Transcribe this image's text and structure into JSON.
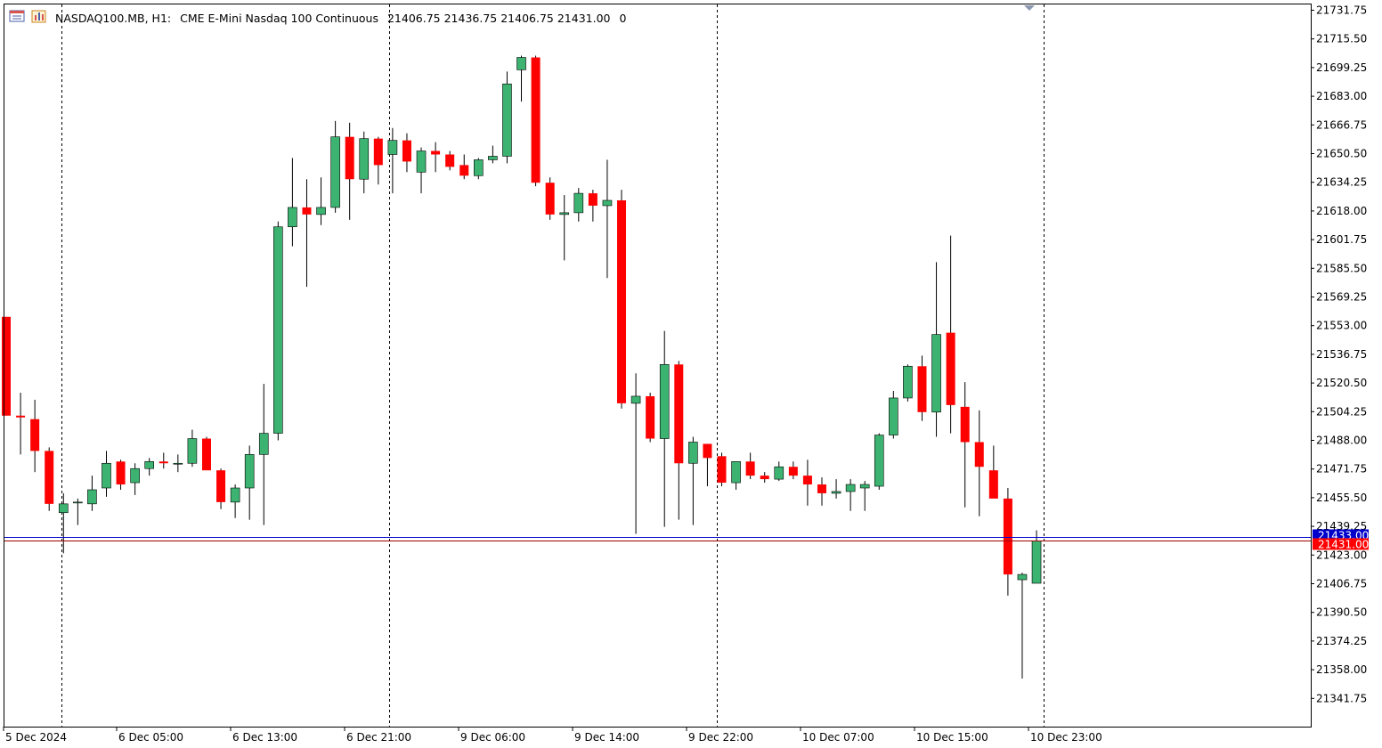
{
  "header": {
    "symbol": "NASDAQ100.MB, H1:",
    "description": "CME E-Mini Nasdaq 100 Continuous",
    "ohlc": "21406.75 21436.75 21406.75 21431.00",
    "volume": "0"
  },
  "colors": {
    "background": "#ffffff",
    "bull": "#3cb371",
    "bear": "#ff0000",
    "wick": "#000000",
    "bid_line": "#0000cc",
    "ask_line": "#a00000",
    "axis": "#000000",
    "separator": "#000000"
  },
  "chart_data": {
    "type": "candlestick",
    "symbol": "NASDAQ100.MB",
    "timeframe": "H1",
    "ylim": [
      21333.5,
      21736
    ],
    "y_ticks": [
      "21731.75",
      "21715.50",
      "21699.25",
      "21683.00",
      "21666.75",
      "21650.50",
      "21634.25",
      "21618.00",
      "21601.75",
      "21585.50",
      "21569.25",
      "21553.00",
      "21536.75",
      "21520.50",
      "21504.25",
      "21488.00",
      "21471.75",
      "21455.50",
      "21439.25",
      "21423.00",
      "21406.75",
      "21390.50",
      "21374.25",
      "21358.00",
      "21341.75"
    ],
    "x_labels": [
      "5 Dec 2024",
      "6 Dec 05:00",
      "6 Dec 13:00",
      "6 Dec 21:00",
      "9 Dec 06:00",
      "9 Dec 14:00",
      "9 Dec 22:00",
      "10 Dec 07:00",
      "10 Dec 15:00",
      "10 Dec 23:00"
    ],
    "day_separators": [
      "6 Dec 00:00",
      "7 Dec 00:00",
      "10 Dec 00:00",
      "11 Dec 00:00"
    ],
    "price_labels": {
      "bid": "21433.00",
      "ask": "21431.00"
    },
    "bid": 21433.0,
    "ask": 21431.0,
    "candles": [
      {
        "o": 21558,
        "h": 21558,
        "l": 21502,
        "c": 21502
      },
      {
        "o": 21502,
        "h": 21515,
        "l": 21480,
        "c": 21501
      },
      {
        "o": 21500,
        "h": 21511,
        "l": 21470,
        "c": 21482
      },
      {
        "o": 21482,
        "h": 21484,
        "l": 21448,
        "c": 21452
      },
      {
        "o": 21447,
        "h": 21458,
        "l": 21424,
        "c": 21452
      },
      {
        "o": 21453,
        "h": 21455,
        "l": 21440,
        "c": 21453
      },
      {
        "o": 21452,
        "h": 21468,
        "l": 21448,
        "c": 21460
      },
      {
        "o": 21461,
        "h": 21482,
        "l": 21456,
        "c": 21475
      },
      {
        "o": 21476,
        "h": 21477,
        "l": 21460,
        "c": 21463
      },
      {
        "o": 21464,
        "h": 21475,
        "l": 21457,
        "c": 21472
      },
      {
        "o": 21472,
        "h": 21478,
        "l": 21468,
        "c": 21476
      },
      {
        "o": 21476,
        "h": 21481,
        "l": 21472,
        "c": 21475
      },
      {
        "o": 21475,
        "h": 21480,
        "l": 21470,
        "c": 21475
      },
      {
        "o": 21475,
        "h": 21494,
        "l": 21473,
        "c": 21489
      },
      {
        "o": 21489,
        "h": 21490,
        "l": 21472,
        "c": 21471
      },
      {
        "o": 21471,
        "h": 21472,
        "l": 21449,
        "c": 21453
      },
      {
        "o": 21453,
        "h": 21463,
        "l": 21444,
        "c": 21461
      },
      {
        "o": 21461,
        "h": 21485,
        "l": 21443,
        "c": 21480
      },
      {
        "o": 21480,
        "h": 21520,
        "l": 21440,
        "c": 21492
      },
      {
        "o": 21492,
        "h": 21612,
        "l": 21488,
        "c": 21609
      },
      {
        "o": 21609,
        "h": 21648,
        "l": 21598,
        "c": 21620
      },
      {
        "o": 21620,
        "h": 21636,
        "l": 21575,
        "c": 21616
      },
      {
        "o": 21616,
        "h": 21637,
        "l": 21610,
        "c": 21620
      },
      {
        "o": 21620,
        "h": 21669,
        "l": 21617,
        "c": 21660
      },
      {
        "o": 21660,
        "h": 21668,
        "l": 21613,
        "c": 21636
      },
      {
        "o": 21636,
        "h": 21663,
        "l": 21628,
        "c": 21659
      },
      {
        "o": 21659,
        "h": 21660,
        "l": 21633,
        "c": 21644
      },
      {
        "o": 21650,
        "h": 21665,
        "l": 21628,
        "c": 21658
      },
      {
        "o": 21658,
        "h": 21662,
        "l": 21640,
        "c": 21646
      },
      {
        "o": 21640,
        "h": 21654,
        "l": 21628,
        "c": 21652
      },
      {
        "o": 21652,
        "h": 21657,
        "l": 21640,
        "c": 21650
      },
      {
        "o": 21650,
        "h": 21652,
        "l": 21641,
        "c": 21643
      },
      {
        "o": 21644,
        "h": 21650,
        "l": 21636,
        "c": 21638
      },
      {
        "o": 21638,
        "h": 21648,
        "l": 21636,
        "c": 21647
      },
      {
        "o": 21647,
        "h": 21655,
        "l": 21645,
        "c": 21649
      },
      {
        "o": 21649,
        "h": 21697,
        "l": 21645,
        "c": 21690
      },
      {
        "o": 21698,
        "h": 21706,
        "l": 21680,
        "c": 21705
      },
      {
        "o": 21705,
        "h": 21706,
        "l": 21632,
        "c": 21634
      },
      {
        "o": 21634,
        "h": 21637,
        "l": 21613,
        "c": 21616
      },
      {
        "o": 21616,
        "h": 21627,
        "l": 21590,
        "c": 21617
      },
      {
        "o": 21617,
        "h": 21631,
        "l": 21612,
        "c": 21628
      },
      {
        "o": 21628,
        "h": 21630,
        "l": 21612,
        "c": 21621
      },
      {
        "o": 21621,
        "h": 21647,
        "l": 21580,
        "c": 21624
      },
      {
        "o": 21624,
        "h": 21630,
        "l": 21506,
        "c": 21509
      },
      {
        "o": 21509,
        "h": 21526,
        "l": 21435,
        "c": 21513
      },
      {
        "o": 21513,
        "h": 21515,
        "l": 21487,
        "c": 21489
      },
      {
        "o": 21489,
        "h": 21550,
        "l": 21439,
        "c": 21531
      },
      {
        "o": 21531,
        "h": 21533,
        "l": 21443,
        "c": 21475
      },
      {
        "o": 21475,
        "h": 21490,
        "l": 21440,
        "c": 21487
      },
      {
        "o": 21486,
        "h": 21486,
        "l": 21462,
        "c": 21478
      },
      {
        "o": 21479,
        "h": 21481,
        "l": 21462,
        "c": 21464
      },
      {
        "o": 21464,
        "h": 21476,
        "l": 21460,
        "c": 21476
      },
      {
        "o": 21476,
        "h": 21481,
        "l": 21466,
        "c": 21468
      },
      {
        "o": 21468,
        "h": 21470,
        "l": 21464,
        "c": 21466
      },
      {
        "o": 21466,
        "h": 21476,
        "l": 21465,
        "c": 21473
      },
      {
        "o": 21473,
        "h": 21476,
        "l": 21466,
        "c": 21468
      },
      {
        "o": 21468,
        "h": 21477,
        "l": 21451,
        "c": 21463
      },
      {
        "o": 21463,
        "h": 21467,
        "l": 21451,
        "c": 21458
      },
      {
        "o": 21458,
        "h": 21466,
        "l": 21455,
        "c": 21459
      },
      {
        "o": 21459,
        "h": 21466,
        "l": 21448,
        "c": 21463
      },
      {
        "o": 21461,
        "h": 21465,
        "l": 21448,
        "c": 21463
      },
      {
        "o": 21462,
        "h": 21492,
        "l": 21460,
        "c": 21491
      },
      {
        "o": 21491,
        "h": 21516,
        "l": 21489,
        "c": 21512
      },
      {
        "o": 21512,
        "h": 21531,
        "l": 21510,
        "c": 21530
      },
      {
        "o": 21530,
        "h": 21536,
        "l": 21499,
        "c": 21504
      },
      {
        "o": 21504,
        "h": 21589,
        "l": 21490,
        "c": 21548
      },
      {
        "o": 21549,
        "h": 21604,
        "l": 21492,
        "c": 21508
      },
      {
        "o": 21507,
        "h": 21521,
        "l": 21450,
        "c": 21487
      },
      {
        "o": 21487,
        "h": 21505,
        "l": 21445,
        "c": 21473
      },
      {
        "o": 21471,
        "h": 21485,
        "l": 21456,
        "c": 21455
      },
      {
        "o": 21455,
        "h": 21461,
        "l": 21400,
        "c": 21412
      },
      {
        "o": 21409,
        "h": 21413,
        "l": 21353,
        "c": 21412
      },
      {
        "o": 21407,
        "h": 21437,
        "l": 21407,
        "c": 21431
      }
    ]
  }
}
